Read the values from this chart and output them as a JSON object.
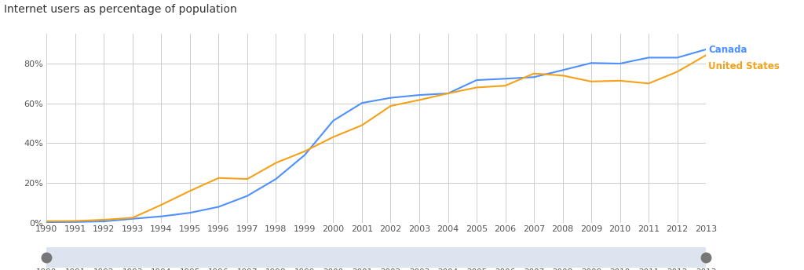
{
  "years": [
    1990,
    1991,
    1992,
    1993,
    1994,
    1995,
    1996,
    1997,
    1998,
    1999,
    2000,
    2001,
    2002,
    2003,
    2004,
    2005,
    2006,
    2007,
    2008,
    2009,
    2010,
    2011,
    2012,
    2013
  ],
  "canada": [
    0.3,
    0.4,
    0.7,
    2.0,
    3.2,
    5.0,
    8.0,
    13.5,
    22.0,
    34.0,
    51.3,
    60.2,
    62.8,
    64.2,
    65.0,
    71.7,
    72.4,
    73.2,
    76.7,
    80.3,
    80.0,
    83.0,
    83.0,
    87.1
  ],
  "us": [
    0.8,
    0.9,
    1.5,
    2.5,
    9.0,
    16.0,
    22.5,
    22.0,
    30.1,
    35.9,
    43.1,
    49.0,
    58.7,
    61.7,
    65.0,
    68.0,
    68.9,
    75.0,
    74.0,
    71.0,
    71.4,
    70.0,
    75.9,
    84.2
  ],
  "canada_color": "#4d90fe",
  "us_color": "#f4a118",
  "title": "Internet users as percentage of population",
  "title_fontsize": 10,
  "ylabel_ticks": [
    "0%",
    "20%",
    "40%",
    "60%",
    "80%"
  ],
  "ytick_vals": [
    0,
    20,
    40,
    60,
    80
  ],
  "bg_color": "#ffffff",
  "grid_color": "#cccccc",
  "canada_label": "Canada",
  "us_label": "United States",
  "xlim": [
    1990,
    2013
  ],
  "ylim": [
    0,
    95
  ],
  "line_width": 1.5,
  "tick_label_color": "#555555",
  "tick_fontsize": 8,
  "slider_bg": "#dde3ef",
  "slider_handle_color": "#777777"
}
